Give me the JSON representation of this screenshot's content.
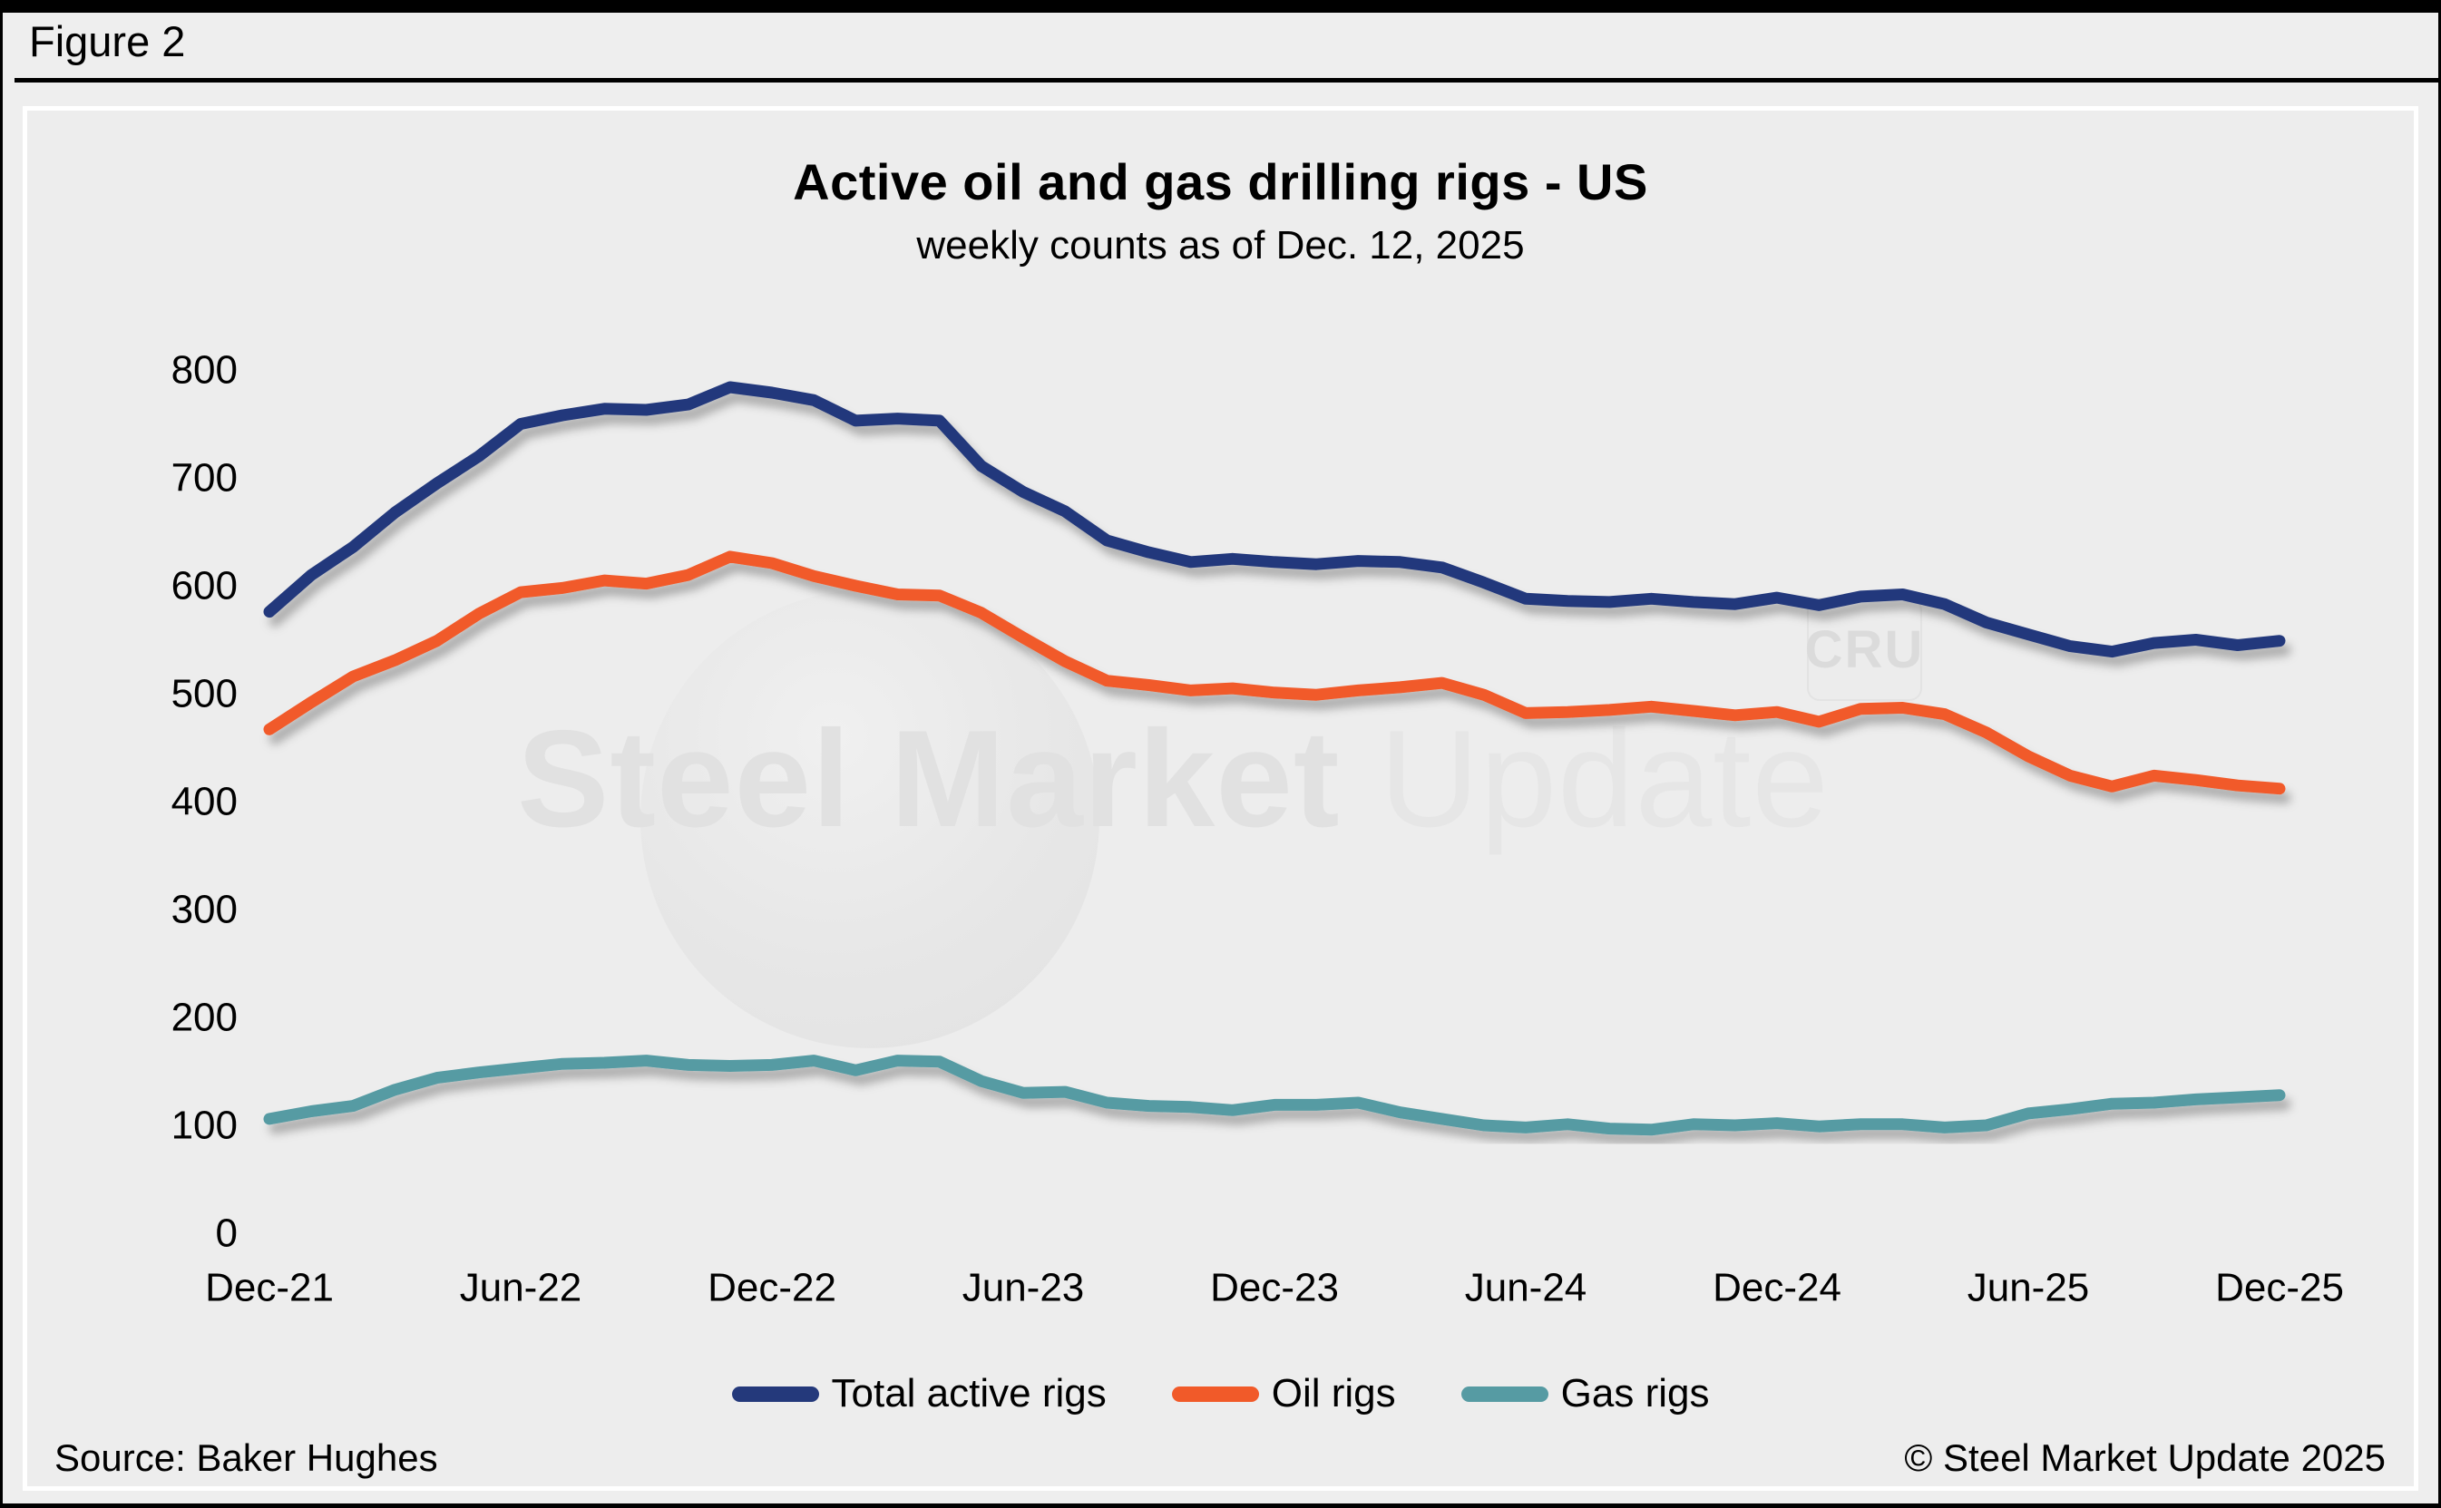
{
  "figure_label": "Figure 2",
  "chart": {
    "title": "Active oil and gas drilling rigs - US",
    "subtitle": "weekly counts as of Dec. 12, 2025"
  },
  "watermark": {
    "text_bold": "Steel Market",
    "text_light": "Update",
    "badge": "CRU"
  },
  "footer": {
    "source": "Source: Baker Hughes",
    "copyright": "© Steel Market Update 2025"
  },
  "colors": {
    "total_rigs": "#24397b",
    "oil_rigs": "#f15a29",
    "gas_rigs": "#569ba3",
    "background": "#eeeeee",
    "panel_border": "#ffffff",
    "frame": "#000000"
  },
  "chart_data": {
    "type": "line",
    "title": "Active oil and gas drilling rigs - US",
    "subtitle": "weekly counts as of Dec. 12, 2025",
    "xlabel": "",
    "ylabel": "",
    "ylim": [
      0,
      800
    ],
    "y_ticks": [
      0,
      100,
      200,
      300,
      400,
      500,
      600,
      700,
      800
    ],
    "x_tick_labels": [
      "Dec-21",
      "Jun-22",
      "Dec-22",
      "Jun-23",
      "Dec-23",
      "Jun-24",
      "Dec-24",
      "Jun-25",
      "Dec-25"
    ],
    "grid": false,
    "legend_position": "bottom",
    "x": [
      "Dec-21",
      "Jan-22",
      "Feb-22",
      "Mar-22",
      "Apr-22",
      "May-22",
      "Jun-22",
      "Jul-22",
      "Aug-22",
      "Sep-22",
      "Oct-22",
      "Nov-22",
      "Dec-22",
      "Jan-23",
      "Feb-23",
      "Mar-23",
      "Apr-23",
      "May-23",
      "Jun-23",
      "Jul-23",
      "Aug-23",
      "Sep-23",
      "Oct-23",
      "Nov-23",
      "Dec-23",
      "Jan-24",
      "Feb-24",
      "Mar-24",
      "Apr-24",
      "May-24",
      "Jun-24",
      "Jul-24",
      "Aug-24",
      "Sep-24",
      "Oct-24",
      "Nov-24",
      "Dec-24",
      "Jan-25",
      "Feb-25",
      "Mar-25",
      "Apr-25",
      "May-25",
      "Jun-25",
      "Jul-25",
      "Aug-25",
      "Sep-25",
      "Oct-25",
      "Nov-25",
      "Dec-25"
    ],
    "series": [
      {
        "name": "Total active rigs",
        "color": "#24397b",
        "values": [
          576,
          610,
          636,
          668,
          695,
          720,
          750,
          758,
          764,
          763,
          768,
          784,
          779,
          772,
          753,
          755,
          753,
          711,
          687,
          669,
          642,
          631,
          622,
          625,
          622,
          620,
          623,
          622,
          617,
          603,
          588,
          586,
          585,
          588,
          585,
          583,
          589,
          582,
          590,
          592,
          583,
          566,
          555,
          544,
          539,
          547,
          550,
          545,
          549
        ]
      },
      {
        "name": "Oil rigs",
        "color": "#f15a29",
        "values": [
          467,
          492,
          516,
          531,
          549,
          574,
          594,
          598,
          605,
          602,
          610,
          627,
          621,
          609,
          600,
          592,
          591,
          575,
          552,
          530,
          512,
          508,
          503,
          505,
          501,
          499,
          503,
          506,
          510,
          499,
          482,
          483,
          485,
          488,
          484,
          480,
          483,
          474,
          486,
          487,
          481,
          464,
          442,
          424,
          414,
          424,
          420,
          415,
          412
        ]
      },
      {
        "name": "Gas rigs",
        "color": "#569ba3",
        "values": [
          106,
          113,
          118,
          133,
          144,
          149,
          153,
          157,
          158,
          160,
          156,
          155,
          156,
          160,
          151,
          160,
          159,
          141,
          130,
          131,
          121,
          118,
          117,
          114,
          119,
          119,
          121,
          112,
          106,
          100,
          98,
          101,
          97,
          96,
          101,
          100,
          102,
          99,
          101,
          101,
          98,
          100,
          111,
          115,
          120,
          121,
          124,
          126,
          128
        ]
      }
    ]
  }
}
